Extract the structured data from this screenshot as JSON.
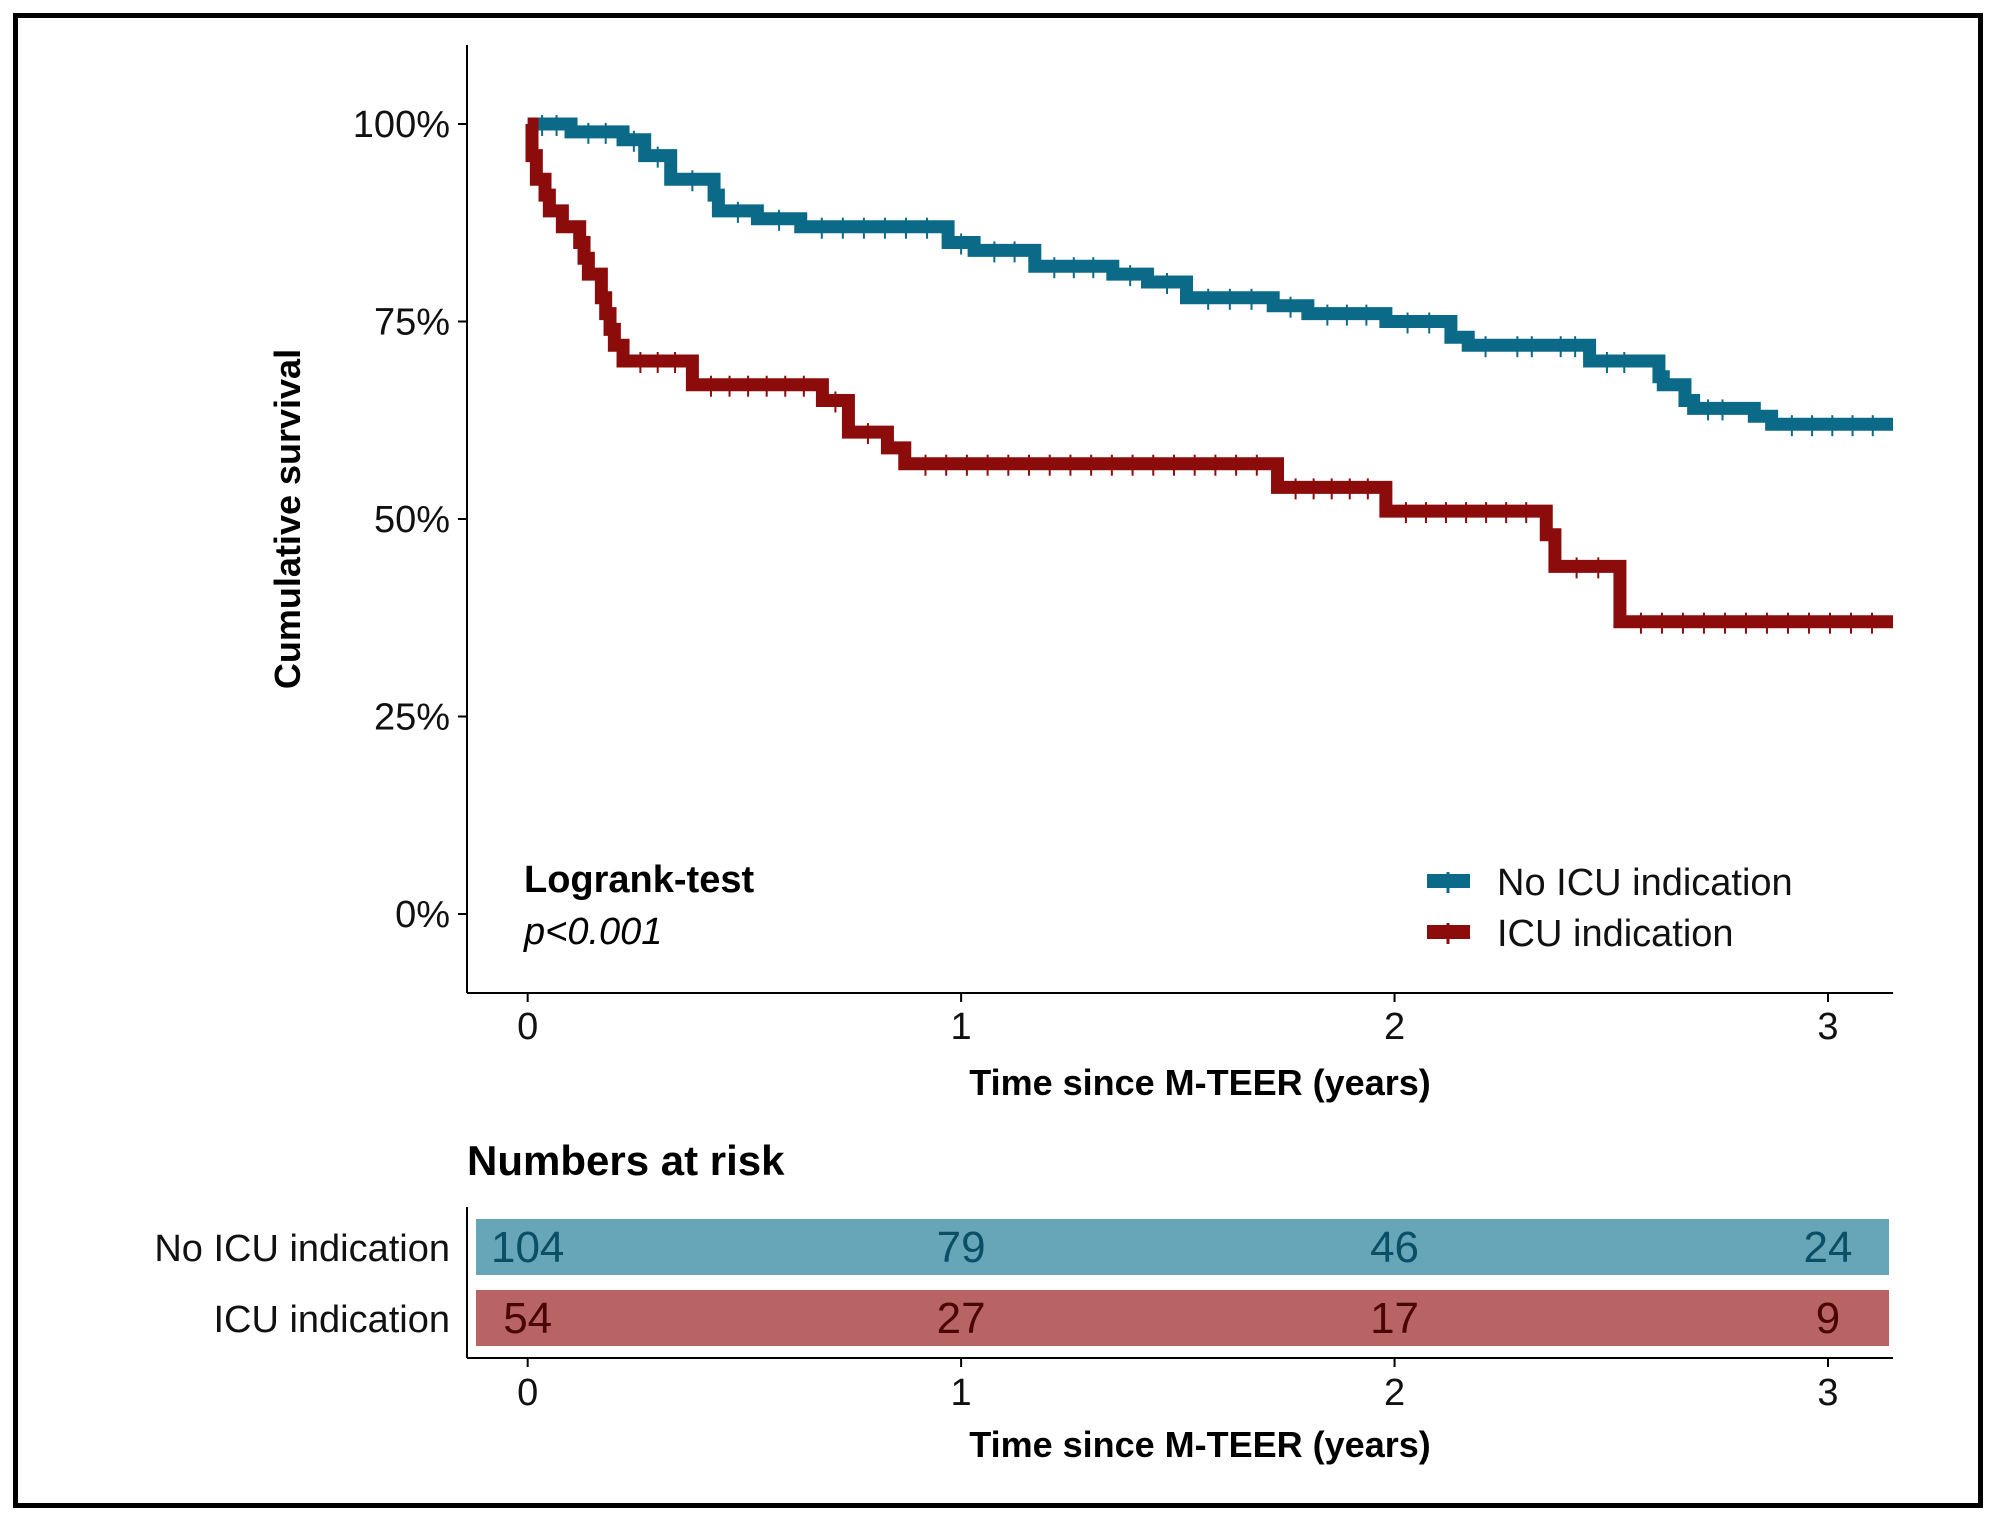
{
  "chart_data": {
    "type": "line",
    "subtype": "kaplan-meier",
    "xlabel": "Time since M-TEER (years)",
    "ylabel": "Cumulative survival",
    "xlim": [
      -0.14,
      3.15
    ],
    "ylim": [
      -0.1,
      1.1
    ],
    "x_ticks": [
      0,
      1,
      2,
      3
    ],
    "y_ticks": [
      0,
      0.25,
      0.5,
      0.75,
      1.0
    ],
    "y_tick_labels": [
      "0%",
      "25%",
      "50%",
      "75%",
      "100%"
    ],
    "annotation": {
      "title": "Logrank-test",
      "text": "p<0.001"
    },
    "legend_position": "bottom-right",
    "series": [
      {
        "name": "No ICU indication",
        "color": "#0b6a87",
        "steps": [
          [
            0,
            1.0
          ],
          [
            0.1,
            0.99
          ],
          [
            0.22,
            0.98
          ],
          [
            0.27,
            0.96
          ],
          [
            0.33,
            0.93
          ],
          [
            0.43,
            0.91
          ],
          [
            0.44,
            0.89
          ],
          [
            0.53,
            0.88
          ],
          [
            0.63,
            0.87
          ],
          [
            0.97,
            0.85
          ],
          [
            1.03,
            0.84
          ],
          [
            1.17,
            0.82
          ],
          [
            1.35,
            0.81
          ],
          [
            1.43,
            0.8
          ],
          [
            1.52,
            0.78
          ],
          [
            1.72,
            0.77
          ],
          [
            1.8,
            0.76
          ],
          [
            1.98,
            0.75
          ],
          [
            2.13,
            0.73
          ],
          [
            2.17,
            0.72
          ],
          [
            2.25,
            0.72
          ],
          [
            2.35,
            0.72
          ],
          [
            2.45,
            0.7
          ],
          [
            2.57,
            0.7
          ],
          [
            2.61,
            0.68
          ],
          [
            2.62,
            0.67
          ],
          [
            2.67,
            0.65
          ],
          [
            2.69,
            0.64
          ],
          [
            2.79,
            0.64
          ],
          [
            2.83,
            0.63
          ],
          [
            2.87,
            0.62
          ],
          [
            3.15,
            0.62
          ]
        ]
      },
      {
        "name": "ICU indication",
        "color": "#8c0b0b",
        "steps": [
          [
            0,
            1.0
          ],
          [
            0.01,
            0.96
          ],
          [
            0.02,
            0.93
          ],
          [
            0.04,
            0.91
          ],
          [
            0.05,
            0.89
          ],
          [
            0.08,
            0.87
          ],
          [
            0.12,
            0.85
          ],
          [
            0.13,
            0.83
          ],
          [
            0.14,
            0.81
          ],
          [
            0.17,
            0.78
          ],
          [
            0.18,
            0.76
          ],
          [
            0.19,
            0.74
          ],
          [
            0.2,
            0.72
          ],
          [
            0.22,
            0.7
          ],
          [
            0.38,
            0.67
          ],
          [
            0.68,
            0.65
          ],
          [
            0.74,
            0.61
          ],
          [
            0.83,
            0.59
          ],
          [
            0.87,
            0.57
          ],
          [
            1.73,
            0.54
          ],
          [
            1.98,
            0.51
          ],
          [
            2.35,
            0.48
          ],
          [
            2.37,
            0.44
          ],
          [
            2.52,
            0.37
          ],
          [
            3.15,
            0.37
          ]
        ]
      }
    ],
    "risk_table": {
      "title": "Numbers at risk",
      "xlabel": "Time since M-TEER (years)",
      "times": [
        0,
        1,
        2,
        3
      ],
      "rows": [
        {
          "label": "No ICU indication",
          "values": [
            104,
            79,
            46,
            24
          ],
          "fill": "#67a6b8",
          "text_color": "#0b4f66"
        },
        {
          "label": "ICU indication",
          "values": [
            54,
            27,
            17,
            9
          ],
          "fill": "#b86464",
          "text_color": "#4a0505"
        }
      ]
    }
  }
}
